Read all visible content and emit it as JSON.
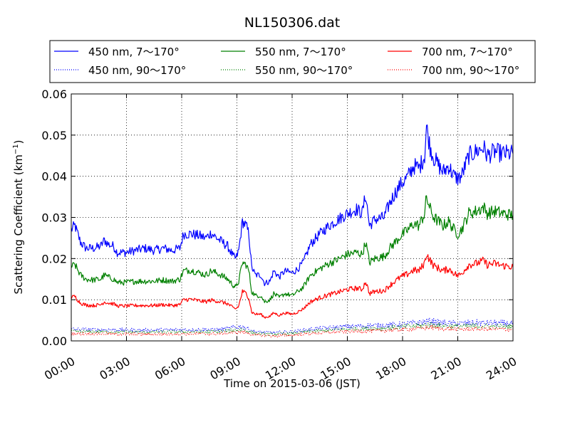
{
  "chart_data": {
    "type": "line",
    "title": "NL150306.dat",
    "xlabel": "Time on 2015-03-06 (JST)",
    "ylabel": "Scattering Coefficient (km",
    "ylabel_sup": "−1",
    "ylabel_tail": ")",
    "xlim": [
      0,
      24
    ],
    "ylim": [
      0,
      0.06
    ],
    "x_ticks": [
      "00:00",
      "03:00",
      "06:00",
      "09:00",
      "12:00",
      "15:00",
      "18:00",
      "21:00",
      "24:00"
    ],
    "y_ticks": [
      "0.00",
      "0.01",
      "0.02",
      "0.03",
      "0.04",
      "0.05",
      "0.06"
    ],
    "grid": true,
    "legend_position": "top",
    "series": [
      {
        "name": "450 nm, 7～170°",
        "color": "#0000ff",
        "style": "solid",
        "points": [
          [
            0,
            0.027
          ],
          [
            0.2,
            0.028
          ],
          [
            0.5,
            0.024
          ],
          [
            0.8,
            0.0225
          ],
          [
            1.2,
            0.0225
          ],
          [
            1.6,
            0.023
          ],
          [
            1.8,
            0.0245
          ],
          [
            2.0,
            0.0235
          ],
          [
            2.3,
            0.023
          ],
          [
            2.5,
            0.0215
          ],
          [
            3.0,
            0.0215
          ],
          [
            3.5,
            0.022
          ],
          [
            4.0,
            0.0225
          ],
          [
            4.5,
            0.022
          ],
          [
            5.0,
            0.0225
          ],
          [
            5.5,
            0.022
          ],
          [
            5.9,
            0.0225
          ],
          [
            6.1,
            0.026
          ],
          [
            6.5,
            0.026
          ],
          [
            7.0,
            0.0255
          ],
          [
            7.3,
            0.025
          ],
          [
            7.6,
            0.0262
          ],
          [
            7.9,
            0.025
          ],
          [
            8.2,
            0.024
          ],
          [
            8.5,
            0.023
          ],
          [
            8.8,
            0.0205
          ],
          [
            8.95,
            0.02
          ],
          [
            9.1,
            0.022
          ],
          [
            9.3,
            0.029
          ],
          [
            9.5,
            0.028
          ],
          [
            9.65,
            0.026
          ],
          [
            9.8,
            0.018
          ],
          [
            10.0,
            0.016
          ],
          [
            10.3,
            0.016
          ],
          [
            10.5,
            0.014
          ],
          [
            10.8,
            0.0145
          ],
          [
            11.0,
            0.017
          ],
          [
            11.3,
            0.0155
          ],
          [
            11.6,
            0.017
          ],
          [
            12.0,
            0.0165
          ],
          [
            12.3,
            0.0175
          ],
          [
            12.6,
            0.019
          ],
          [
            13.0,
            0.0235
          ],
          [
            13.5,
            0.026
          ],
          [
            14.0,
            0.028
          ],
          [
            14.5,
            0.0295
          ],
          [
            15.0,
            0.031
          ],
          [
            15.5,
            0.032
          ],
          [
            15.8,
            0.031
          ],
          [
            16.0,
            0.0355
          ],
          [
            16.2,
            0.028
          ],
          [
            16.5,
            0.0295
          ],
          [
            17.0,
            0.03
          ],
          [
            17.3,
            0.0335
          ],
          [
            17.6,
            0.036
          ],
          [
            17.9,
            0.038
          ],
          [
            18.3,
            0.04
          ],
          [
            18.6,
            0.0425
          ],
          [
            18.9,
            0.042
          ],
          [
            19.2,
            0.045
          ],
          [
            19.3,
            0.052
          ],
          [
            19.5,
            0.047
          ],
          [
            19.7,
            0.0445
          ],
          [
            19.9,
            0.043
          ],
          [
            20.2,
            0.041
          ],
          [
            20.5,
            0.0425
          ],
          [
            20.8,
            0.04
          ],
          [
            21.0,
            0.0395
          ],
          [
            21.2,
            0.04
          ],
          [
            21.4,
            0.0425
          ],
          [
            21.6,
            0.045
          ],
          [
            22.0,
            0.046
          ],
          [
            22.4,
            0.047
          ],
          [
            22.6,
            0.045
          ],
          [
            23.0,
            0.046
          ],
          [
            23.4,
            0.0455
          ],
          [
            24.0,
            0.0455
          ]
        ]
      },
      {
        "name": "550 nm, 7～170°",
        "color": "#008000",
        "style": "solid",
        "points": [
          [
            0,
            0.018
          ],
          [
            0.2,
            0.0185
          ],
          [
            0.5,
            0.016
          ],
          [
            0.8,
            0.015
          ],
          [
            1.2,
            0.0148
          ],
          [
            1.6,
            0.015
          ],
          [
            1.8,
            0.016
          ],
          [
            2.0,
            0.0155
          ],
          [
            2.3,
            0.015
          ],
          [
            2.5,
            0.0142
          ],
          [
            3.0,
            0.0142
          ],
          [
            3.5,
            0.0145
          ],
          [
            4.0,
            0.0145
          ],
          [
            4.5,
            0.0145
          ],
          [
            5.0,
            0.0148
          ],
          [
            5.5,
            0.0145
          ],
          [
            5.9,
            0.015
          ],
          [
            6.1,
            0.017
          ],
          [
            6.5,
            0.0172
          ],
          [
            7.0,
            0.0165
          ],
          [
            7.3,
            0.016
          ],
          [
            7.6,
            0.017
          ],
          [
            7.9,
            0.0165
          ],
          [
            8.2,
            0.0158
          ],
          [
            8.5,
            0.015
          ],
          [
            8.8,
            0.0135
          ],
          [
            8.95,
            0.013
          ],
          [
            9.1,
            0.0145
          ],
          [
            9.3,
            0.019
          ],
          [
            9.5,
            0.0185
          ],
          [
            9.65,
            0.017
          ],
          [
            9.8,
            0.012
          ],
          [
            10.0,
            0.011
          ],
          [
            10.3,
            0.011
          ],
          [
            10.5,
            0.0095
          ],
          [
            10.8,
            0.01
          ],
          [
            11.0,
            0.0115
          ],
          [
            11.3,
            0.0105
          ],
          [
            11.6,
            0.0115
          ],
          [
            12.0,
            0.011
          ],
          [
            12.3,
            0.012
          ],
          [
            12.6,
            0.013
          ],
          [
            13.0,
            0.016
          ],
          [
            13.5,
            0.0175
          ],
          [
            14.0,
            0.0188
          ],
          [
            14.5,
            0.0198
          ],
          [
            15.0,
            0.021
          ],
          [
            15.5,
            0.0215
          ],
          [
            15.8,
            0.021
          ],
          [
            16.0,
            0.024
          ],
          [
            16.2,
            0.019
          ],
          [
            16.5,
            0.02
          ],
          [
            17.0,
            0.0205
          ],
          [
            17.3,
            0.0225
          ],
          [
            17.6,
            0.024
          ],
          [
            17.9,
            0.0255
          ],
          [
            18.3,
            0.027
          ],
          [
            18.6,
            0.0285
          ],
          [
            18.9,
            0.028
          ],
          [
            19.2,
            0.031
          ],
          [
            19.3,
            0.035
          ],
          [
            19.5,
            0.032
          ],
          [
            19.7,
            0.03
          ],
          [
            19.9,
            0.0292
          ],
          [
            20.2,
            0.028
          ],
          [
            20.5,
            0.029
          ],
          [
            20.8,
            0.027
          ],
          [
            21.0,
            0.026
          ],
          [
            21.2,
            0.027
          ],
          [
            21.4,
            0.029
          ],
          [
            21.6,
            0.031
          ],
          [
            22.0,
            0.0315
          ],
          [
            22.4,
            0.0325
          ],
          [
            22.6,
            0.031
          ],
          [
            23.0,
            0.0315
          ],
          [
            23.4,
            0.031
          ],
          [
            24.0,
            0.0305
          ]
        ]
      },
      {
        "name": "700 nm, 7～170°",
        "color": "#ff0000",
        "style": "solid",
        "points": [
          [
            0,
            0.0105
          ],
          [
            0.2,
            0.0108
          ],
          [
            0.5,
            0.0092
          ],
          [
            0.8,
            0.0087
          ],
          [
            1.2,
            0.0086
          ],
          [
            1.6,
            0.0088
          ],
          [
            1.8,
            0.0095
          ],
          [
            2.0,
            0.0092
          ],
          [
            2.3,
            0.009
          ],
          [
            2.5,
            0.0085
          ],
          [
            3.0,
            0.0085
          ],
          [
            3.5,
            0.0086
          ],
          [
            4.0,
            0.0086
          ],
          [
            4.5,
            0.0086
          ],
          [
            5.0,
            0.0088
          ],
          [
            5.5,
            0.0086
          ],
          [
            5.9,
            0.0088
          ],
          [
            6.1,
            0.01
          ],
          [
            6.5,
            0.0101
          ],
          [
            7.0,
            0.0097
          ],
          [
            7.3,
            0.0095
          ],
          [
            7.6,
            0.0099
          ],
          [
            7.9,
            0.0097
          ],
          [
            8.2,
            0.0094
          ],
          [
            8.5,
            0.009
          ],
          [
            8.8,
            0.008
          ],
          [
            8.95,
            0.0078
          ],
          [
            9.1,
            0.0085
          ],
          [
            9.3,
            0.012
          ],
          [
            9.5,
            0.0115
          ],
          [
            9.65,
            0.0105
          ],
          [
            9.8,
            0.007
          ],
          [
            10.0,
            0.0065
          ],
          [
            10.3,
            0.0065
          ],
          [
            10.5,
            0.0057
          ],
          [
            10.8,
            0.006
          ],
          [
            11.0,
            0.0068
          ],
          [
            11.3,
            0.0062
          ],
          [
            11.6,
            0.0068
          ],
          [
            12.0,
            0.0065
          ],
          [
            12.3,
            0.007
          ],
          [
            12.6,
            0.0078
          ],
          [
            13.0,
            0.0095
          ],
          [
            13.5,
            0.0105
          ],
          [
            14.0,
            0.0112
          ],
          [
            14.5,
            0.0118
          ],
          [
            15.0,
            0.0125
          ],
          [
            15.5,
            0.0128
          ],
          [
            15.8,
            0.0125
          ],
          [
            16.0,
            0.0145
          ],
          [
            16.2,
            0.0115
          ],
          [
            16.5,
            0.012
          ],
          [
            17.0,
            0.0122
          ],
          [
            17.3,
            0.0135
          ],
          [
            17.6,
            0.0145
          ],
          [
            17.9,
            0.0155
          ],
          [
            18.3,
            0.0163
          ],
          [
            18.6,
            0.0172
          ],
          [
            18.9,
            0.017
          ],
          [
            19.2,
            0.019
          ],
          [
            19.3,
            0.0212
          ],
          [
            19.5,
            0.0195
          ],
          [
            19.7,
            0.0182
          ],
          [
            19.9,
            0.0178
          ],
          [
            20.2,
            0.017
          ],
          [
            20.5,
            0.0175
          ],
          [
            20.8,
            0.0165
          ],
          [
            21.0,
            0.0158
          ],
          [
            21.2,
            0.0163
          ],
          [
            21.4,
            0.0175
          ],
          [
            21.6,
            0.0185
          ],
          [
            22.0,
            0.0188
          ],
          [
            22.4,
            0.0195
          ],
          [
            22.6,
            0.0185
          ],
          [
            23.0,
            0.0188
          ],
          [
            23.4,
            0.0183
          ],
          [
            24.0,
            0.018
          ]
        ]
      },
      {
        "name": "450 nm, 90～170°",
        "color": "#0000ff",
        "style": "dotted",
        "points": [
          [
            0,
            0.0028
          ],
          [
            2,
            0.0027
          ],
          [
            4,
            0.0026
          ],
          [
            6,
            0.0027
          ],
          [
            8,
            0.0027
          ],
          [
            9.3,
            0.0035
          ],
          [
            10,
            0.0022
          ],
          [
            11,
            0.002
          ],
          [
            12,
            0.0022
          ],
          [
            13,
            0.0028
          ],
          [
            15,
            0.0035
          ],
          [
            17,
            0.0038
          ],
          [
            18,
            0.004
          ],
          [
            19.2,
            0.0046
          ],
          [
            19.5,
            0.0048
          ],
          [
            20,
            0.0044
          ],
          [
            21,
            0.0042
          ],
          [
            22,
            0.0044
          ],
          [
            24,
            0.0042
          ]
        ]
      },
      {
        "name": "550 nm, 90～170°",
        "color": "#008000",
        "style": "dotted",
        "points": [
          [
            0,
            0.0023
          ],
          [
            2,
            0.0022
          ],
          [
            4,
            0.0021
          ],
          [
            6,
            0.0022
          ],
          [
            8,
            0.0022
          ],
          [
            9.3,
            0.0028
          ],
          [
            10,
            0.0018
          ],
          [
            11,
            0.0016
          ],
          [
            12,
            0.0018
          ],
          [
            13,
            0.0023
          ],
          [
            15,
            0.0029
          ],
          [
            17,
            0.0031
          ],
          [
            18,
            0.0034
          ],
          [
            19.2,
            0.0038
          ],
          [
            19.5,
            0.004
          ],
          [
            20,
            0.0037
          ],
          [
            21,
            0.0035
          ],
          [
            22,
            0.0036
          ],
          [
            24,
            0.0035
          ]
        ]
      },
      {
        "name": "700 nm, 90～170°",
        "color": "#ff0000",
        "style": "dotted",
        "points": [
          [
            0,
            0.0018
          ],
          [
            2,
            0.0017
          ],
          [
            4,
            0.0016
          ],
          [
            6,
            0.0017
          ],
          [
            8,
            0.0017
          ],
          [
            9.3,
            0.0022
          ],
          [
            10,
            0.0014
          ],
          [
            11,
            0.0012
          ],
          [
            12,
            0.0014
          ],
          [
            13,
            0.0018
          ],
          [
            15,
            0.0023
          ],
          [
            17,
            0.0025
          ],
          [
            18,
            0.0028
          ],
          [
            19.2,
            0.0031
          ],
          [
            19.5,
            0.0033
          ],
          [
            20,
            0.003
          ],
          [
            21,
            0.0028
          ],
          [
            22,
            0.0029
          ],
          [
            24,
            0.0028
          ]
        ]
      }
    ]
  }
}
